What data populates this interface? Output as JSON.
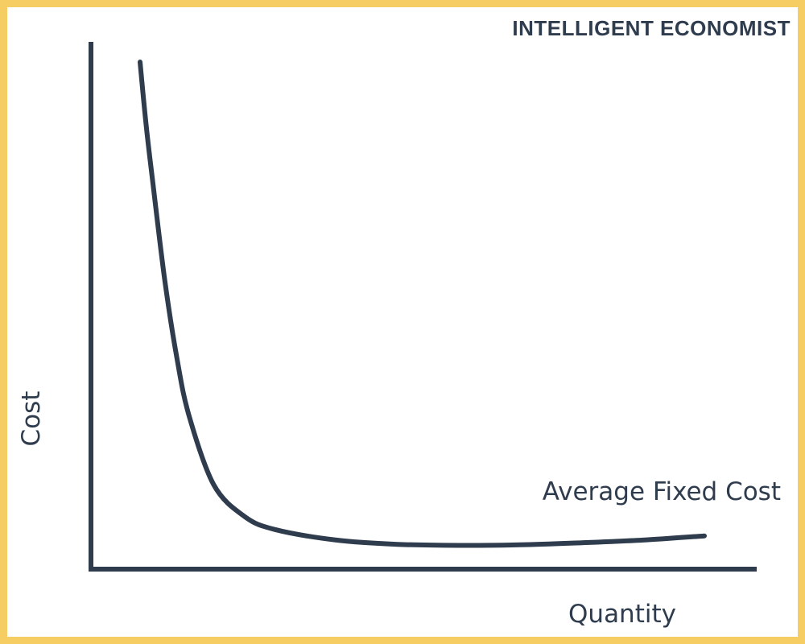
{
  "brand": {
    "text": "INTELLIGENT ECONOMIST"
  },
  "colors": {
    "border": "#f5cd63",
    "ink": "#2f3c4e",
    "background": "#ffffff"
  },
  "chart_data": {
    "type": "line",
    "title": "",
    "xlabel": "Quantity",
    "ylabel": "Cost",
    "grid": false,
    "ticks_shown": false,
    "series": [
      {
        "name": "Average Fixed Cost",
        "x": [
          0.08,
          0.09,
          0.1,
          0.12,
          0.14,
          0.16,
          0.2,
          0.25,
          0.3,
          0.4,
          0.5,
          0.6,
          0.7,
          0.8,
          0.9,
          1.0
        ],
        "y": [
          0.96,
          0.84,
          0.74,
          0.55,
          0.4,
          0.29,
          0.16,
          0.1,
          0.075,
          0.055,
          0.047,
          0.045,
          0.046,
          0.05,
          0.055,
          0.063
        ]
      }
    ]
  }
}
